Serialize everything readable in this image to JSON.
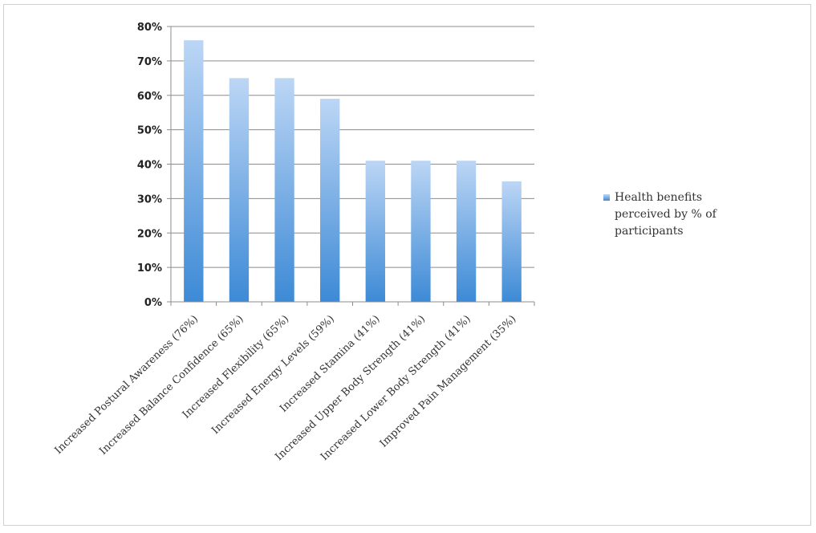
{
  "chart_data": {
    "type": "bar",
    "categories": [
      "Increased Postural Awareness (76%)",
      "Increased Balance Confidence (65%)",
      "Increased Flexibility (65%)",
      "Increased Energy Levels (59%)",
      "Increased Stamina (41%)",
      "Increased Upper Body Strength (41%)",
      "Increased Lower Body Strength (41%)",
      "Improved Pain Management (35%)"
    ],
    "series": [
      {
        "name": "Health benefits perceived by % of participants",
        "values": [
          76,
          65,
          65,
          59,
          41,
          41,
          41,
          35
        ]
      }
    ],
    "y_ticks": [
      "0%",
      "10%",
      "20%",
      "30%",
      "40%",
      "50%",
      "60%",
      "70%",
      "80%"
    ],
    "ylim": [
      0,
      80
    ],
    "grid": true,
    "legend_position": "right",
    "colors": {
      "bar_top": "#bcd6f5",
      "bar_bottom": "#3d8ad6",
      "grid": "#8c8c8c"
    }
  }
}
